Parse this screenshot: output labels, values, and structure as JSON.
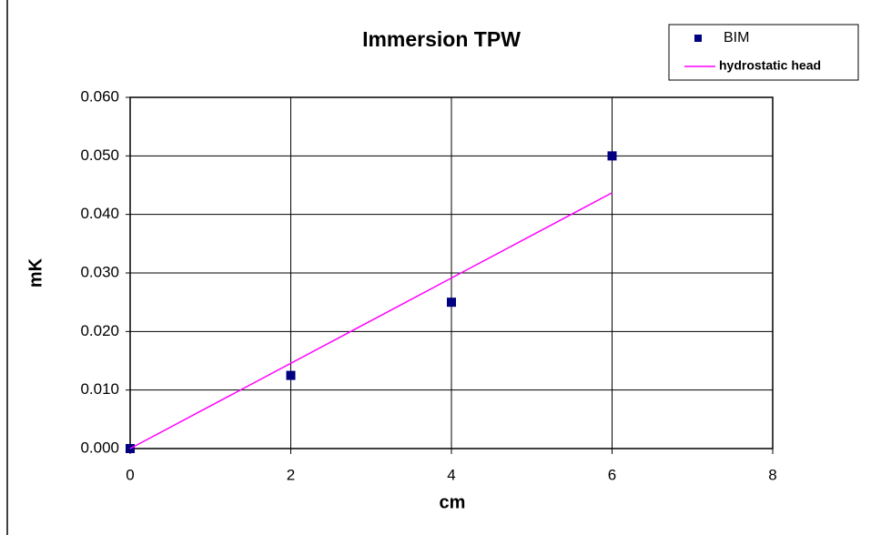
{
  "chart_data": {
    "type": "scatter",
    "title": "Immersion  TPW",
    "x_label": "cm",
    "y_label": "mK",
    "series": [
      {
        "name": "BIM",
        "color": "#000080",
        "marker": "square",
        "x": [
          0,
          2,
          4,
          6
        ],
        "values": [
          0,
          0.0125,
          0.025,
          0.05
        ]
      },
      {
        "name": "hydrostatic head",
        "color": "#ff00ff",
        "style": "line",
        "x": [
          0,
          6
        ],
        "values": [
          0,
          0.0437
        ]
      }
    ],
    "xlim": [
      0,
      8
    ],
    "xticks": [
      0,
      2,
      4,
      6,
      8
    ],
    "ylim": [
      0,
      0.06
    ],
    "yticks": [
      {
        "value": 0,
        "label": "0.000"
      },
      {
        "value": 0.01,
        "label": "0.010"
      },
      {
        "value": 0.02,
        "label": "0.020"
      },
      {
        "value": 0.03,
        "label": "0.030"
      },
      {
        "value": 0.04,
        "label": "0.040"
      },
      {
        "value": 0.05,
        "label": "0.050"
      },
      {
        "value": 0.06,
        "label": "0.060"
      }
    ],
    "grid": true,
    "legend": "top-right"
  }
}
